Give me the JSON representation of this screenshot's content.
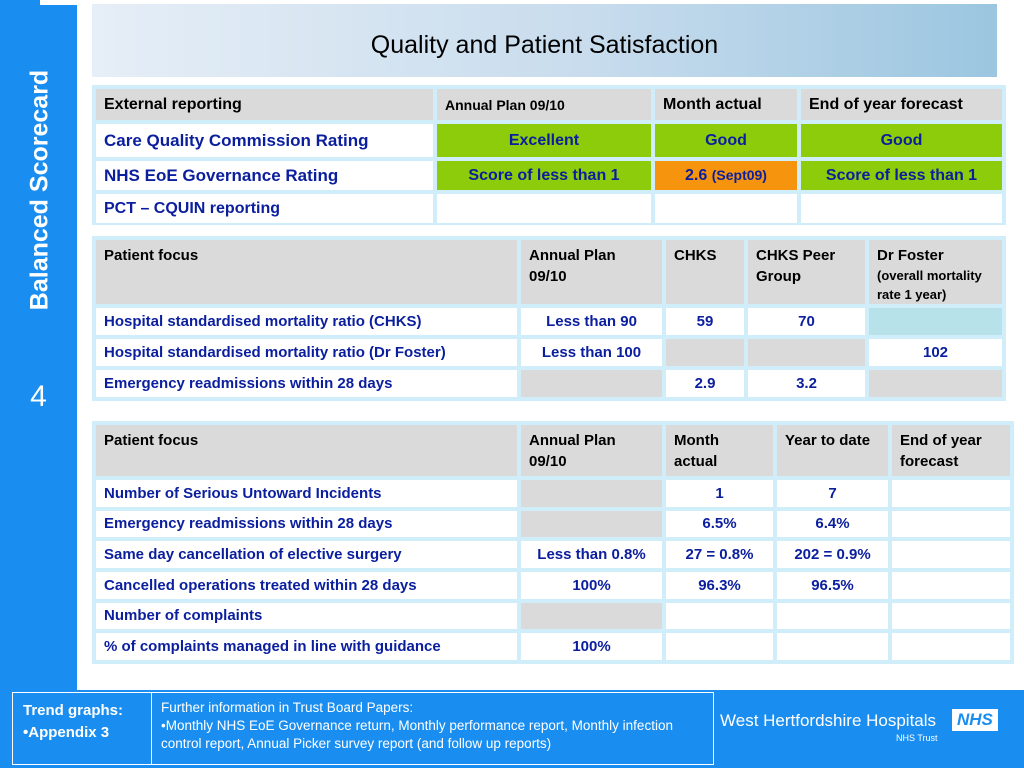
{
  "sidebar": {
    "title": "Balanced Scorecard",
    "page_number": "4"
  },
  "title": "Quality and Patient Satisfaction",
  "external": {
    "headers": [
      "External reporting",
      "Annual Plan 09/10",
      "Month actual",
      "End of year forecast"
    ],
    "rows": [
      {
        "label": "Care Quality Commission Rating",
        "plan": "Excellent",
        "month": "Good",
        "forecast": "Good"
      },
      {
        "label": "NHS EoE Governance Rating",
        "plan": "Score of less than 1",
        "month": "2.6",
        "month_note": "(Sept09)",
        "forecast": "Score of less than 1"
      },
      {
        "label": "PCT – CQUIN reporting",
        "plan": "",
        "month": "",
        "forecast": ""
      }
    ],
    "status_colors": {
      "green": "#8ccc0a",
      "amber": "#f7940e"
    }
  },
  "mortality": {
    "headers": [
      "Patient focus",
      "Annual Plan 09/10",
      "CHKS",
      "CHKS Peer Group",
      "Dr Foster",
      "(overall mortality rate 1 year)"
    ],
    "rows": [
      {
        "label": "Hospital standardised mortality ratio (CHKS)",
        "plan": "Less than 90",
        "chks": "59",
        "peer": "70",
        "foster": ""
      },
      {
        "label": "Hospital standardised mortality ratio (Dr Foster)",
        "plan": "Less than 100",
        "chks": "",
        "peer": "",
        "foster": "102"
      },
      {
        "label": "Emergency readmissions within 28 days",
        "plan": "",
        "chks": "2.9",
        "peer": "3.2",
        "foster": ""
      }
    ]
  },
  "incidents": {
    "headers": [
      "Patient focus",
      "Annual Plan 09/10",
      "Month actual",
      "Year to date",
      "End of year forecast"
    ],
    "rows": [
      {
        "label": "Number of Serious Untoward Incidents",
        "plan": "",
        "month": "1",
        "ytd": "7",
        "forecast": ""
      },
      {
        "label": "Emergency readmissions within 28 days",
        "plan": "",
        "month": "6.5%",
        "ytd": "6.4%",
        "forecast": ""
      },
      {
        "label": "Same day cancellation of elective surgery",
        "plan": "Less than 0.8%",
        "month": "27 = 0.8%",
        "ytd": "202 = 0.9%",
        "forecast": ""
      },
      {
        "label": "Cancelled operations treated within 28 days",
        "plan": "100%",
        "month": "96.3%",
        "ytd": "96.5%",
        "forecast": ""
      },
      {
        "label": "Number of complaints",
        "plan": "",
        "month": "",
        "ytd": "",
        "forecast": ""
      },
      {
        "label": "% of complaints managed in line with guidance",
        "plan": "100%",
        "month": "",
        "ytd": "",
        "forecast": ""
      }
    ]
  },
  "footer": {
    "trend_title": "Trend graphs:",
    "trend_item": "•Appendix 3",
    "info_title": "Further information in Trust Board Papers:",
    "info_text": "•Monthly NHS EoE Governance return, Monthly performance report, Monthly infection control report, Annual Picker survey report (and follow up reports)",
    "logo_name": "West Hertfordshire Hospitals",
    "logo_badge": "NHS",
    "logo_trust": "NHS Trust"
  }
}
